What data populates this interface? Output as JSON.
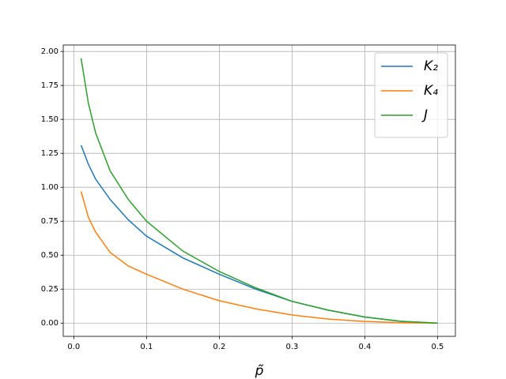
{
  "chart_data": {
    "type": "line",
    "x_label": "p̃",
    "x": [
      0.01,
      0.02,
      0.03,
      0.05,
      0.075,
      0.1,
      0.15,
      0.2,
      0.25,
      0.3,
      0.35,
      0.4,
      0.45,
      0.5
    ],
    "series": [
      {
        "name": "K₂",
        "color": "#1f77b4",
        "values": [
          1.31,
          1.17,
          1.06,
          0.91,
          0.76,
          0.64,
          0.48,
          0.36,
          0.25,
          0.16,
          0.095,
          0.045,
          0.013,
          0
        ]
      },
      {
        "name": "K₄",
        "color": "#ff7f0e",
        "values": [
          0.97,
          0.78,
          0.67,
          0.52,
          0.42,
          0.36,
          0.25,
          0.165,
          0.105,
          0.06,
          0.03,
          0.012,
          0.003,
          0
        ]
      },
      {
        "name": "J",
        "color": "#2ca02c",
        "values": [
          1.95,
          1.62,
          1.4,
          1.12,
          0.91,
          0.75,
          0.53,
          0.38,
          0.26,
          0.16,
          0.095,
          0.045,
          0.013,
          0
        ]
      }
    ],
    "xlim": [
      -0.0145,
      0.5245
    ],
    "ylim": [
      -0.0975,
      2.0475
    ],
    "xticks": [
      {
        "value": 0,
        "label": "0.0"
      },
      0.1,
      0.2,
      0.3,
      0.4,
      0.5
    ],
    "yticks": [
      {
        "value": 0,
        "label": "0.00"
      },
      {
        "value": 0.25,
        "label": "0.25"
      },
      {
        "value": 0.5,
        "label": "0.50"
      },
      {
        "value": 0.75,
        "label": "0.75"
      },
      {
        "value": 1,
        "label": "1.00"
      },
      {
        "value": 1.25,
        "label": "1.25"
      },
      {
        "value": 1.5,
        "label": "1.50"
      },
      {
        "value": 1.75,
        "label": "1.75"
      },
      {
        "value": 2,
        "label": "2.00"
      }
    ],
    "grid": true,
    "legend": "upper-right"
  }
}
